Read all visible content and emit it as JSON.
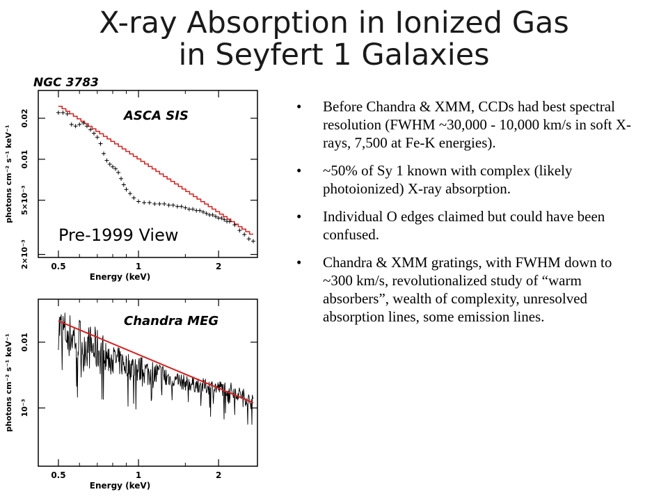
{
  "title": {
    "line1": "X-ray Absorption in Ionized Gas",
    "line2": "in Seyfert 1 Galaxies"
  },
  "bullets": [
    "Before Chandra & XMM, CCDs had best spectral resolution (FWHM ~30,000 - 10,000 km/s in soft X-rays, 7,500 at Fe-K energies).",
    "~50% of Sy 1 known with complex (likely photoionized) X-ray absorption.",
    "Individual O edges claimed but could have been confused.",
    "Chandra & XMM gratings, with FWHM down to ~300 km/s, revolutionalized study of “warm absorbers”, wealth of complexity, unresolved absorption lines, some emission lines."
  ],
  "bullet_glyph": "•",
  "figure_label": "NGC 3783",
  "colors": {
    "model": "#d42020",
    "data": "#000000"
  },
  "chart_data": [
    {
      "type": "scatter",
      "panel_label": "ASCA SIS",
      "annotation": "Pre-1999 View",
      "xlabel": "Energy (keV)",
      "ylabel": "photons cm⁻² s⁻¹ keV⁻¹",
      "xscale": "log",
      "yscale": "log",
      "xlim": [
        0.42,
        2.8
      ],
      "ylim": [
        0.0019,
        0.032
      ],
      "xticks": [
        {
          "v": 0.5,
          "label": "0.5"
        },
        {
          "v": 1,
          "label": "1"
        },
        {
          "v": 2,
          "label": "2"
        }
      ],
      "yticks": [
        {
          "v": 0.002,
          "label": "2×10⁻³"
        },
        {
          "v": 0.005,
          "label": "5×10⁻³"
        },
        {
          "v": 0.01,
          "label": "0.01"
        },
        {
          "v": 0.02,
          "label": "0.02"
        }
      ],
      "series": [
        {
          "kind": "data",
          "x": [
            0.5,
            0.52,
            0.54,
            0.56,
            0.58,
            0.6,
            0.62,
            0.64,
            0.66,
            0.68,
            0.7,
            0.72,
            0.74,
            0.76,
            0.78,
            0.8,
            0.82,
            0.84,
            0.86,
            0.88,
            0.9,
            0.93,
            0.96,
            1.0,
            1.05,
            1.1,
            1.15,
            1.2,
            1.25,
            1.3,
            1.35,
            1.4,
            1.45,
            1.5,
            1.55,
            1.6,
            1.65,
            1.7,
            1.75,
            1.8,
            1.85,
            1.9,
            1.95,
            2.0,
            2.05,
            2.1,
            2.15,
            2.2,
            2.3,
            2.4,
            2.5,
            2.6,
            2.7
          ],
          "y": [
            0.022,
            0.022,
            0.0215,
            0.018,
            0.0175,
            0.018,
            0.0185,
            0.0175,
            0.0165,
            0.0155,
            0.0145,
            0.013,
            0.011,
            0.0098,
            0.0092,
            0.0088,
            0.0085,
            0.008,
            0.0072,
            0.0065,
            0.006,
            0.0056,
            0.0052,
            0.0049,
            0.0048,
            0.0048,
            0.0047,
            0.0047,
            0.0047,
            0.0046,
            0.0046,
            0.0045,
            0.0045,
            0.0044,
            0.0043,
            0.0043,
            0.0042,
            0.0042,
            0.0041,
            0.004,
            0.0039,
            0.0039,
            0.0038,
            0.0037,
            0.0037,
            0.0036,
            0.0035,
            0.0035,
            0.0033,
            0.003,
            0.0028,
            0.0026,
            0.0025
          ]
        },
        {
          "kind": "model",
          "x": [
            0.5,
            2.7
          ],
          "y": [
            0.0245,
            0.0027
          ]
        }
      ]
    },
    {
      "type": "line",
      "panel_label": "Chandra MEG",
      "xlabel": "Energy (keV)",
      "ylabel": "photons cm⁻² s⁻¹ keV⁻¹",
      "xscale": "log",
      "yscale": "log",
      "xlim": [
        0.42,
        2.8
      ],
      "ylim": [
        0.00013,
        0.045
      ],
      "xticks": [
        {
          "v": 0.5,
          "label": "0.5"
        },
        {
          "v": 1,
          "label": "1"
        },
        {
          "v": 2,
          "label": "2"
        }
      ],
      "yticks": [
        {
          "v": 0.001,
          "label": "10⁻³"
        },
        {
          "v": 0.01,
          "label": "0.01"
        }
      ],
      "series": [
        {
          "kind": "data",
          "x": [
            0.5,
            0.55,
            0.6,
            0.65,
            0.7,
            0.75,
            0.8,
            0.85,
            0.9,
            0.95,
            1.0,
            1.1,
            1.2,
            1.3,
            1.4,
            1.5,
            1.6,
            1.7,
            1.8,
            1.9,
            2.0,
            2.1,
            2.2,
            2.3,
            2.4,
            2.5,
            2.6,
            2.7
          ],
          "y": [
            0.017,
            0.013,
            0.011,
            0.0085,
            0.0075,
            0.0062,
            0.0055,
            0.005,
            0.0045,
            0.0042,
            0.0038,
            0.0034,
            0.0031,
            0.0028,
            0.0026,
            0.0024,
            0.0023,
            0.0022,
            0.0021,
            0.0021,
            0.002,
            0.002,
            0.0019,
            0.0018,
            0.0016,
            0.0015,
            0.0013,
            0.0012
          ]
        },
        {
          "kind": "model",
          "x": [
            0.5,
            2.7
          ],
          "y": [
            0.021,
            0.0012
          ]
        }
      ]
    }
  ]
}
